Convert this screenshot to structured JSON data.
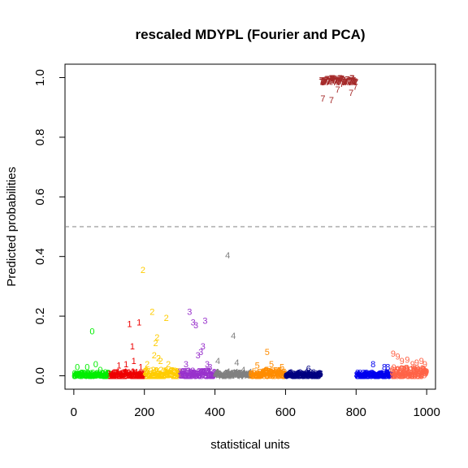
{
  "chart_data": {
    "type": "scatter",
    "title": "rescaled MDYPL (Fourier and PCA)",
    "xlabel": "statistical units",
    "ylabel": "Predicted probabilities",
    "xlim": [
      -25,
      1025
    ],
    "ylim": [
      -0.045,
      1.045
    ],
    "x_ticks": [
      0,
      200,
      400,
      600,
      800,
      1000
    ],
    "y_ticks": [
      0.0,
      0.2,
      0.4,
      0.6,
      0.8,
      1.0
    ],
    "threshold_line": {
      "y": 0.5,
      "style": "dashed",
      "color": "#808080"
    },
    "grid": false,
    "legend": "none",
    "marker": "digit label of class",
    "groups": [
      {
        "label": "0",
        "color": "#00ee00",
        "x_range": [
          1,
          100
        ],
        "base_max": 0.012,
        "outliers": [
          [
            10,
            0.03
          ],
          [
            38,
            0.03
          ],
          [
            52,
            0.15
          ],
          [
            62,
            0.04
          ],
          [
            75,
            0.02
          ]
        ]
      },
      {
        "label": "1",
        "color": "#ee0000",
        "x_range": [
          101,
          200
        ],
        "base_max": 0.015,
        "outliers": [
          [
            128,
            0.035
          ],
          [
            148,
            0.04
          ],
          [
            158,
            0.175
          ],
          [
            166,
            0.1
          ],
          [
            170,
            0.05
          ],
          [
            185,
            0.18
          ],
          [
            190,
            0.03
          ]
        ]
      },
      {
        "label": "2",
        "color": "#ffcc00",
        "x_range": [
          201,
          300
        ],
        "base_max": 0.02,
        "outliers": [
          [
            196,
            0.355
          ],
          [
            208,
            0.04
          ],
          [
            222,
            0.215
          ],
          [
            228,
            0.07
          ],
          [
            232,
            0.11
          ],
          [
            236,
            0.13
          ],
          [
            240,
            0.06
          ],
          [
            246,
            0.05
          ],
          [
            262,
            0.195
          ],
          [
            268,
            0.04
          ]
        ]
      },
      {
        "label": "3",
        "color": "#9932cc",
        "x_range": [
          301,
          400
        ],
        "base_max": 0.02,
        "outliers": [
          [
            318,
            0.04
          ],
          [
            328,
            0.215
          ],
          [
            338,
            0.18
          ],
          [
            346,
            0.17
          ],
          [
            352,
            0.07
          ],
          [
            360,
            0.08
          ],
          [
            366,
            0.1
          ],
          [
            372,
            0.185
          ],
          [
            378,
            0.04
          ],
          [
            386,
            0.03
          ]
        ]
      },
      {
        "label": "4",
        "color": "#808080",
        "x_range": [
          401,
          500
        ],
        "base_max": 0.015,
        "outliers": [
          [
            408,
            0.05
          ],
          [
            436,
            0.405
          ],
          [
            452,
            0.135
          ],
          [
            462,
            0.045
          ],
          [
            480,
            0.02
          ]
        ]
      },
      {
        "label": "5",
        "color": "#ff8c00",
        "x_range": [
          501,
          600
        ],
        "base_max": 0.02,
        "outliers": [
          [
            520,
            0.035
          ],
          [
            548,
            0.08
          ],
          [
            560,
            0.04
          ],
          [
            590,
            0.03
          ]
        ]
      },
      {
        "label": "6",
        "color": "#000080",
        "x_range": [
          601,
          700
        ],
        "base_max": 0.012,
        "outliers": [
          [
            665,
            0.025
          ]
        ]
      },
      {
        "label": "7",
        "color": "#a52a2a",
        "x_range": [
          701,
          800
        ],
        "base_max": 1.0,
        "base_min": 0.985,
        "outliers": [
          [
            706,
            0.93
          ],
          [
            730,
            0.925
          ],
          [
            748,
            0.96
          ],
          [
            760,
            0.98
          ],
          [
            786,
            0.95
          ],
          [
            798,
            0.97
          ]
        ]
      },
      {
        "label": "8",
        "color": "#0000ee",
        "x_range": [
          801,
          900
        ],
        "base_max": 0.012,
        "outliers": [
          [
            848,
            0.04
          ],
          [
            880,
            0.03
          ],
          [
            890,
            0.03
          ]
        ]
      },
      {
        "label": "9",
        "color": "#ff6347",
        "x_range": [
          901,
          1000
        ],
        "base_max": 0.03,
        "outliers": [
          [
            905,
            0.075
          ],
          [
            918,
            0.065
          ],
          [
            930,
            0.05
          ],
          [
            945,
            0.055
          ],
          [
            960,
            0.04
          ],
          [
            972,
            0.045
          ],
          [
            985,
            0.05
          ],
          [
            995,
            0.04
          ]
        ]
      }
    ]
  }
}
